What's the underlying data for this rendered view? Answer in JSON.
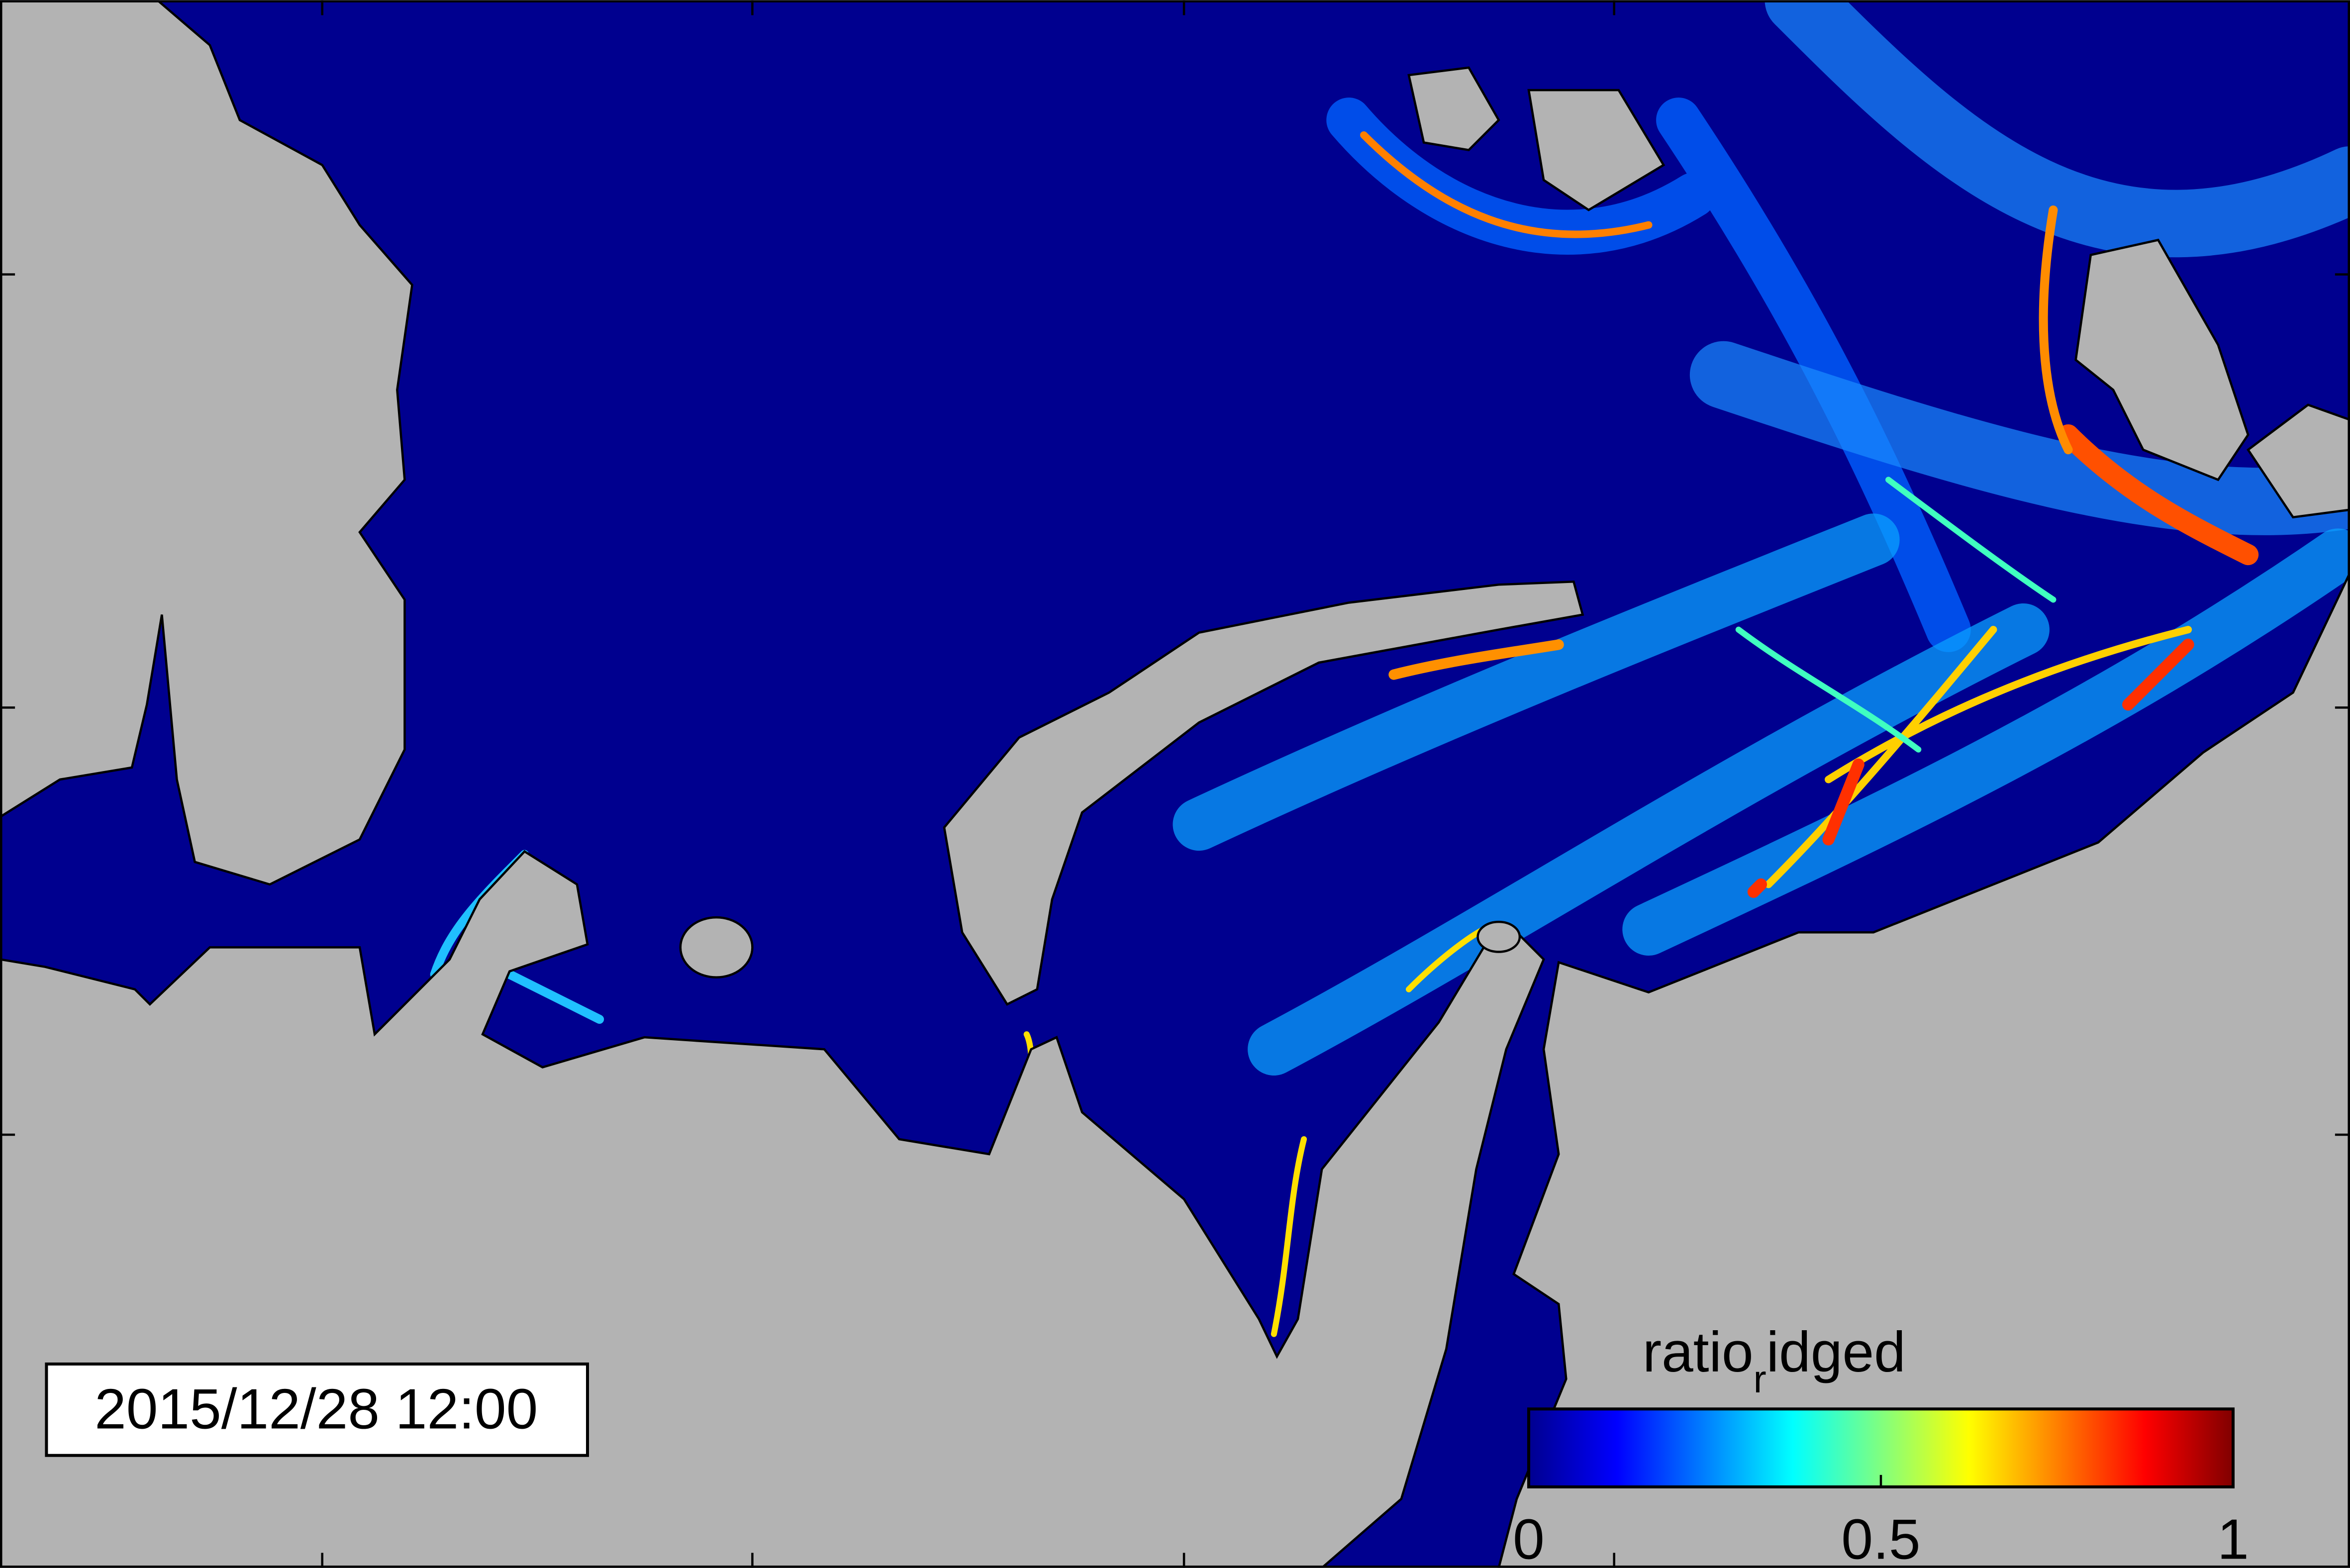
{
  "map": {
    "timestamp": "2015/12/28 12:00",
    "colorbar": {
      "label_parts": [
        "ratio",
        "r",
        "idged"
      ],
      "range": [
        0,
        1
      ],
      "ticks": [
        0,
        0.5,
        1
      ]
    }
  }
}
